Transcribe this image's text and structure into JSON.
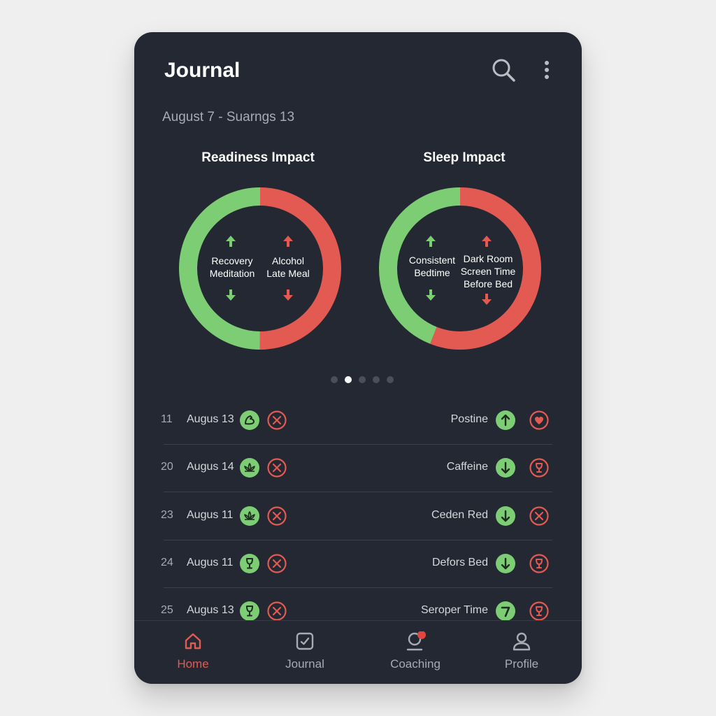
{
  "header": {
    "title": "Journal",
    "search_icon": "search-icon",
    "more_icon": "more-vertical-icon"
  },
  "date_range": "August 7 - Suarngs 13",
  "colors": {
    "positive": "#7ccd74",
    "negative": "#e25a52",
    "background": "#232832",
    "active_nav": "#e25a52"
  },
  "charts": [
    {
      "title": "Readiness Impact",
      "positive_share": 0.5,
      "positive_factors": [
        "Recovery",
        "Meditation"
      ],
      "negative_factors": [
        "Alcohol",
        "Late Meal"
      ]
    },
    {
      "title": "Sleep Impact",
      "positive_share": 0.44,
      "positive_factors": [
        "Consistent",
        "Bedtime"
      ],
      "negative_factors": [
        "Dark Room",
        "Screen Time",
        "Before Bed"
      ]
    }
  ],
  "carousel": {
    "total": 5,
    "active_index": 1
  },
  "entries": [
    {
      "number": "11",
      "date": "Augus 13",
      "activity_icon": "muscle-icon",
      "factor": "Postine",
      "trend": "up",
      "trend_icon": "arrow-up-icon",
      "status_icon": "heart-icon"
    },
    {
      "number": "20",
      "date": "Augus 14",
      "activity_icon": "lotus-icon",
      "factor": "Caffeine",
      "trend": "down",
      "trend_icon": "arrow-down-icon",
      "status_icon": "wine-glass-icon"
    },
    {
      "number": "23",
      "date": "Augus 11",
      "activity_icon": "lotus-icon",
      "factor": "Ceden Red",
      "trend": "down",
      "trend_icon": "arrow-down-icon",
      "status_icon": "close-icon"
    },
    {
      "number": "24",
      "date": "Augus 11",
      "activity_icon": "wine-glass-icon",
      "factor": "Defors Bed",
      "trend": "down",
      "trend_icon": "arrow-down-icon",
      "status_icon": "wine-glass-icon"
    },
    {
      "number": "25",
      "date": "Augus 13",
      "activity_icon": "wine-glass-icon",
      "factor": "Seroper Time",
      "trend": "unknown",
      "trend_icon": "question-icon",
      "status_icon": "wine-glass-icon"
    }
  ],
  "nav": [
    {
      "label": "Home",
      "icon": "home-icon",
      "active": true
    },
    {
      "label": "Journal",
      "icon": "journal-icon",
      "active": false
    },
    {
      "label": "Coaching",
      "icon": "coaching-icon",
      "active": false,
      "has_notification": true
    },
    {
      "label": "Profile",
      "icon": "profile-icon",
      "active": false
    }
  ]
}
